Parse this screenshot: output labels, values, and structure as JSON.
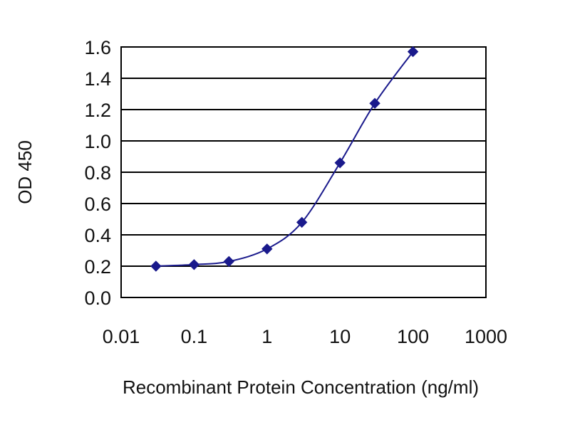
{
  "chart_data": {
    "type": "scatter",
    "xscale": "log",
    "xlabel": "Recombinant Protein Concentration (ng/ml)",
    "ylabel": "OD 450",
    "xlim": [
      0.01,
      1000
    ],
    "ylim": [
      0.0,
      1.6
    ],
    "x_ticks": [
      "0.01",
      "0.1",
      "1",
      "10",
      "100",
      "1000"
    ],
    "y_ticks": [
      "0.0",
      "0.2",
      "0.4",
      "0.6",
      "0.8",
      "1.0",
      "1.2",
      "1.4",
      "1.6"
    ],
    "grid": "horizontal",
    "fit_curve": true,
    "series": [
      {
        "x": [
          0.03,
          0.1,
          0.3,
          1,
          3,
          10,
          30,
          100
        ],
        "y": [
          0.2,
          0.21,
          0.23,
          0.31,
          0.48,
          0.86,
          1.24,
          1.57
        ]
      }
    ],
    "colors": {
      "series": "#1a1a8c",
      "frame": "#000000",
      "grid": "#000000"
    }
  }
}
